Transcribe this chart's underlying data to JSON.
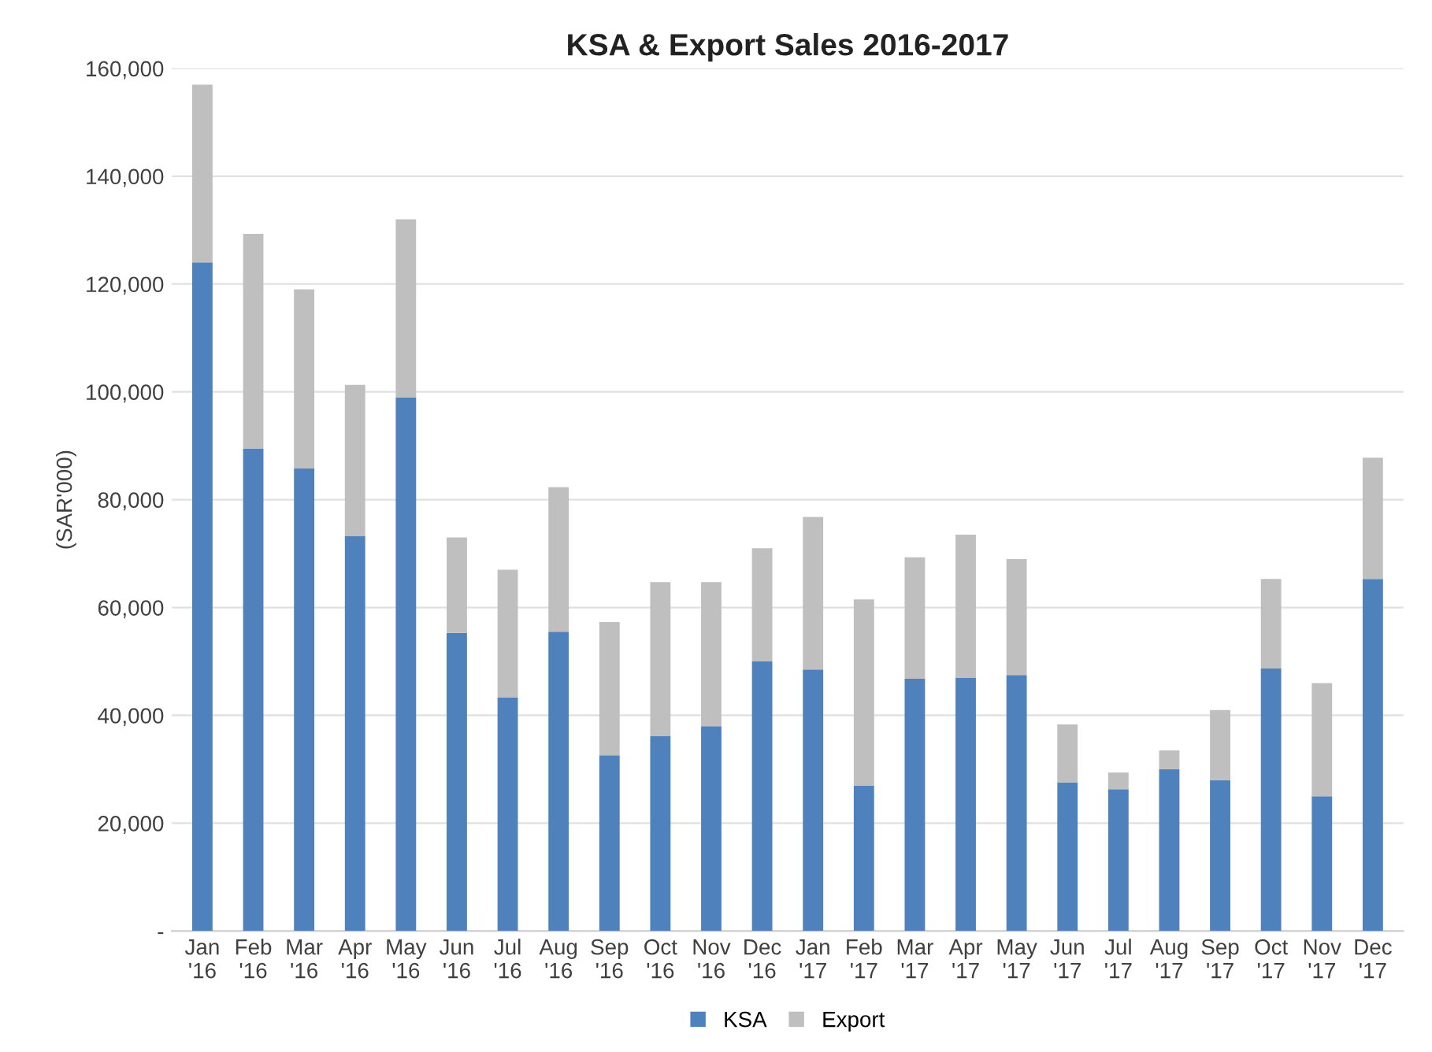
{
  "chart_data": {
    "type": "bar",
    "stacked": true,
    "title": "KSA & Export Sales 2016-2017",
    "ylabel": "(SAR'000)",
    "categories": [
      "Jan\n'16",
      "Feb\n'16",
      "Mar\n'16",
      "Apr\n'16",
      "May\n'16",
      "Jun\n'16",
      "Jul\n'16",
      "Aug\n'16",
      "Sep\n'16",
      "Oct\n'16",
      "Nov\n'16",
      "Dec\n'16",
      "Jan\n'17",
      "Feb\n'17",
      "Mar\n'17",
      "Apr\n'17",
      "May\n'17",
      "Jun\n'17",
      "Jul\n'17",
      "Aug\n'17",
      "Sep\n'17",
      "Oct\n'17",
      "Nov\n'17",
      "Dec\n'17"
    ],
    "series": [
      {
        "name": "KSA",
        "color": "#4f81bd",
        "values": [
          124000,
          89500,
          85800,
          73300,
          99000,
          55300,
          43300,
          55500,
          32600,
          36200,
          38000,
          50000,
          48500,
          27000,
          46800,
          47000,
          47500,
          27600,
          26300,
          30000,
          28000,
          48700,
          25000,
          65300
        ]
      },
      {
        "name": "Export",
        "color": "#bfbfbf",
        "values": [
          33000,
          39800,
          33200,
          28000,
          33000,
          17700,
          23700,
          26800,
          24700,
          28500,
          26700,
          21000,
          28300,
          34500,
          22500,
          26500,
          21500,
          10700,
          3100,
          3500,
          13000,
          16600,
          21000,
          22500
        ]
      }
    ],
    "ylim": [
      0,
      160000
    ],
    "yticks": [
      {
        "value": 0,
        "label": "-"
      },
      {
        "value": 20000,
        "label": "20,000"
      },
      {
        "value": 40000,
        "label": "40,000"
      },
      {
        "value": 60000,
        "label": "60,000"
      },
      {
        "value": 80000,
        "label": "80,000"
      },
      {
        "value": 100000,
        "label": "100,000"
      },
      {
        "value": 120000,
        "label": "120,000"
      },
      {
        "value": 140000,
        "label": "140,000"
      },
      {
        "value": 160000,
        "label": "160,000"
      }
    ],
    "grid": "y",
    "legend": "bottom"
  }
}
